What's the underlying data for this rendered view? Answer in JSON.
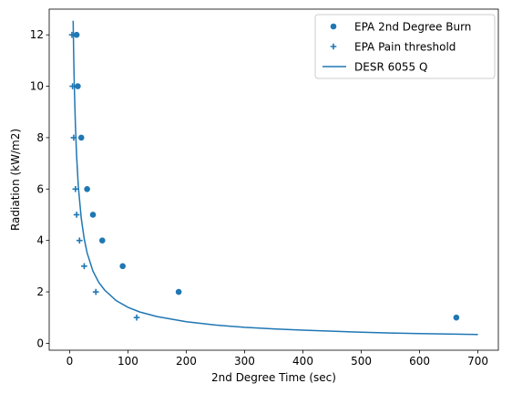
{
  "chart_data": {
    "type": "scatter",
    "title": "",
    "xlabel": "2nd Degree Time (sec)",
    "ylabel": "Radiation (kW/m2)",
    "xlim": [
      -35,
      735
    ],
    "ylim": [
      -0.27,
      13.0
    ],
    "xticks": [
      0,
      100,
      200,
      300,
      400,
      500,
      600,
      700
    ],
    "yticks": [
      0,
      2,
      4,
      6,
      8,
      10,
      12
    ],
    "grid": false,
    "legend_position": "top-right",
    "color": "#1f77b4",
    "series": [
      {
        "name": "EPA 2nd Degree Burn",
        "type": "scatter",
        "marker": "circle",
        "x": [
          663,
          187,
          91,
          56,
          40,
          30,
          20,
          14,
          12
        ],
        "y": [
          1,
          2,
          3,
          4,
          5,
          6,
          8,
          10,
          12
        ]
      },
      {
        "name": "EPA Pain threshold",
        "type": "scatter",
        "marker": "plus",
        "x": [
          115,
          45,
          25,
          17,
          12,
          10,
          7,
          5,
          4
        ],
        "y": [
          1,
          2,
          3,
          4,
          5,
          6,
          8,
          10,
          12
        ]
      },
      {
        "name": "DESR 6055 Q",
        "type": "line",
        "x": [
          6,
          7,
          8,
          10,
          12,
          15,
          20,
          25,
          30,
          40,
          50,
          60,
          80,
          100,
          120,
          150,
          200,
          250,
          300,
          350,
          400,
          450,
          500,
          550,
          600,
          650,
          700
        ],
        "y": [
          12.55,
          11.19,
          10.09,
          8.45,
          7.28,
          6.09,
          4.86,
          4.07,
          3.52,
          2.81,
          2.37,
          2.07,
          1.66,
          1.4,
          1.22,
          1.04,
          0.84,
          0.71,
          0.62,
          0.56,
          0.51,
          0.47,
          0.43,
          0.4,
          0.38,
          0.36,
          0.34
        ]
      }
    ]
  }
}
